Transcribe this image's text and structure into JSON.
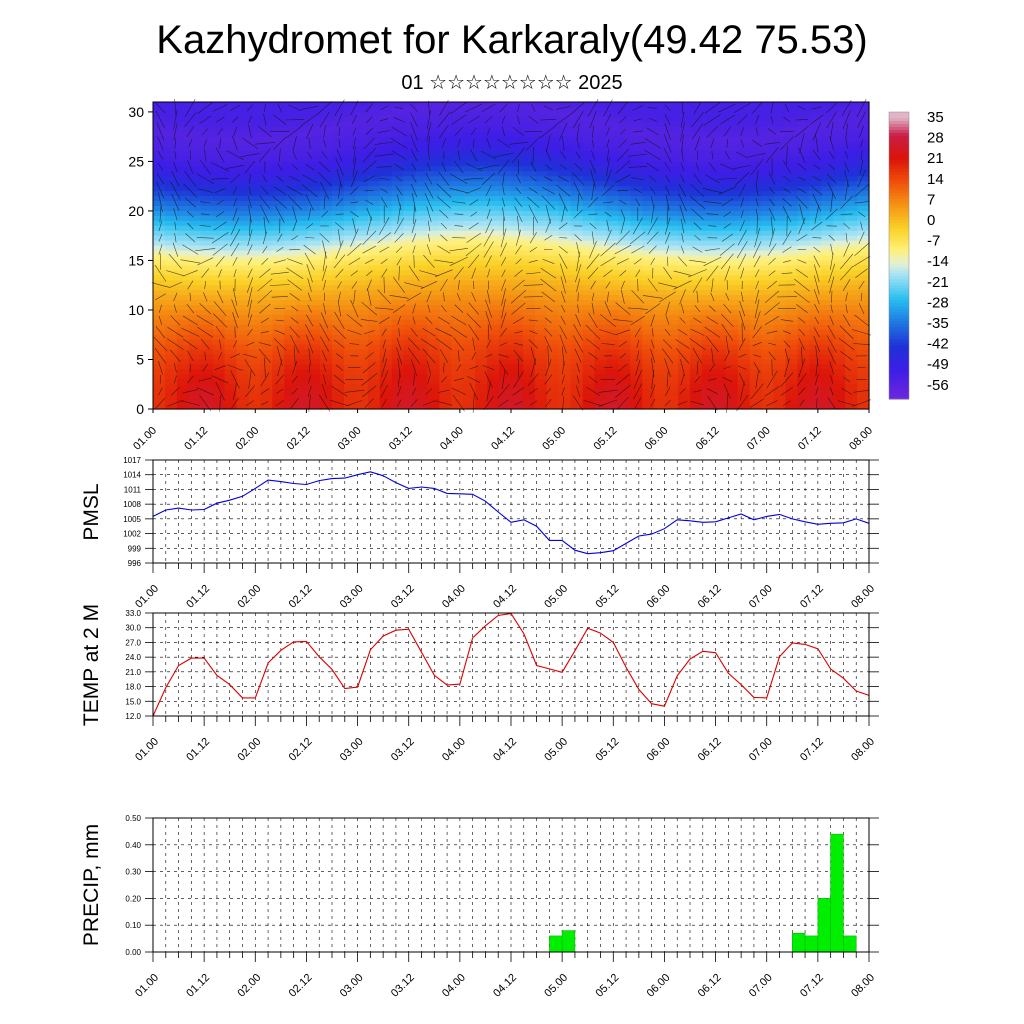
{
  "title": "Kazhydromet for Karkaraly(49.42 75.53)",
  "subtitle": "01 ☆☆☆☆☆☆☆☆ 2025",
  "time_ticks": [
    "01.00",
    "01.12",
    "02.00",
    "02.12",
    "03.00",
    "03.12",
    "04.00",
    "04.12",
    "05.00",
    "05.12",
    "06.00",
    "06.12",
    "07.00",
    "07.12",
    "08.00"
  ],
  "colors": {
    "pmsl_line": "#0000dd",
    "temp_line": "#dd0000",
    "precip_bar": "#00ee00"
  },
  "chart_data": [
    {
      "type": "heatmap",
      "title": "",
      "xlabel": "",
      "ylabel": "",
      "ylim": [
        0,
        31
      ],
      "yticks": [
        0,
        5,
        10,
        15,
        20,
        25,
        30
      ],
      "xticks": [
        "01.00",
        "01.12",
        "02.00",
        "02.12",
        "03.00",
        "03.12",
        "04.00",
        "04.12",
        "05.00",
        "05.12",
        "06.00",
        "06.12",
        "07.00",
        "07.12",
        "08.00"
      ],
      "colorbar": {
        "labels": [
          "35",
          "28",
          "21",
          "14",
          "7",
          "0",
          "-7",
          "-14",
          "-21",
          "-28",
          "-35",
          "-42",
          "-49",
          "-56"
        ],
        "min": -60,
        "max": 38
      },
      "overlay": "wind vectors",
      "temperature_profile": {
        "levels": [
          0,
          2,
          4,
          6,
          8,
          10,
          12,
          14,
          16,
          17,
          19,
          21,
          23,
          25,
          27,
          29,
          31
        ],
        "values": [
          22,
          21,
          19,
          16,
          12,
          8,
          3,
          -3,
          -10,
          -16,
          -24,
          -33,
          -41,
          -49,
          -53,
          -55,
          -52
        ]
      }
    },
    {
      "type": "line",
      "ylabel": "PMSL",
      "ylim": [
        996,
        1017
      ],
      "yticks": [
        996,
        999,
        1002,
        1005,
        1008,
        1011,
        1014,
        1017
      ],
      "x": [
        0,
        3,
        6,
        9,
        12,
        15,
        18,
        21,
        24,
        27,
        30,
        33,
        36,
        39,
        42,
        45,
        48,
        51,
        54,
        57,
        60,
        63,
        66,
        69,
        72,
        75,
        78,
        81,
        84,
        87,
        90,
        93,
        96,
        99,
        102,
        105,
        108,
        111,
        114,
        117,
        120,
        123,
        126,
        129,
        132,
        135,
        138,
        141,
        144,
        147,
        150,
        153,
        156,
        159,
        162,
        165,
        168
      ],
      "xlabel_ticks": [
        "01.00",
        "01.12",
        "02.00",
        "02.12",
        "03.00",
        "03.12",
        "04.00",
        "04.12",
        "05.00",
        "05.12",
        "06.00",
        "06.12",
        "07.00",
        "07.12",
        "08.00"
      ],
      "series": [
        {
          "values": [
            1005.5,
            1006.8,
            1007.2,
            1006.8,
            1006.9,
            1008.2,
            1008.8,
            1009.6,
            1011.2,
            1012.9,
            1012.6,
            1012.2,
            1012.0,
            1012.8,
            1013.2,
            1013.3,
            1014.0,
            1014.6,
            1013.8,
            1012.4,
            1011.2,
            1011.5,
            1011.2,
            1010.2,
            1010.1,
            1010.0,
            1008.6,
            1006.4,
            1004.3,
            1004.8,
            1003.5,
            1000.6,
            1000.6,
            998.6,
            997.9,
            998.1,
            998.5,
            1000.0,
            1001.5,
            1001.9,
            1003.0,
            1004.8,
            1004.6,
            1004.3,
            1004.4,
            1005.2,
            1006.0,
            1004.8,
            1005.5,
            1005.9,
            1005.0,
            1004.4,
            1003.9,
            1004.1,
            1004.2,
            1005.0,
            1004.1
          ]
        }
      ]
    },
    {
      "type": "line",
      "ylabel": "TEMP at 2 M",
      "ylim": [
        12.0,
        33.0
      ],
      "yticks": [
        "12.0",
        "15.0",
        "18.0",
        "21.0",
        "24.0",
        "27.0",
        "30.0",
        "33.0"
      ],
      "x": [
        0,
        3,
        6,
        9,
        12,
        15,
        18,
        21,
        24,
        27,
        30,
        33,
        36,
        39,
        42,
        45,
        48,
        51,
        54,
        57,
        60,
        63,
        66,
        69,
        72,
        75,
        78,
        81,
        84,
        87,
        90,
        93,
        96,
        99,
        102,
        105,
        108,
        111,
        114,
        117,
        120,
        123,
        126,
        129,
        132,
        135,
        138,
        141,
        144,
        147,
        150,
        153,
        156,
        159,
        162,
        165,
        168
      ],
      "xlabel_ticks": [
        "01.00",
        "01.12",
        "02.00",
        "02.12",
        "03.00",
        "03.12",
        "04.00",
        "04.12",
        "05.00",
        "05.12",
        "06.00",
        "06.12",
        "07.00",
        "07.12",
        "08.00"
      ],
      "series": [
        {
          "values": [
            12.0,
            17.8,
            22.3,
            23.8,
            23.8,
            20.3,
            18.4,
            15.7,
            15.7,
            22.8,
            25.4,
            27.1,
            27.2,
            24.1,
            21.5,
            17.6,
            17.9,
            25.5,
            28.3,
            29.5,
            29.7,
            25.0,
            20.3,
            18.3,
            18.5,
            27.9,
            30.4,
            32.5,
            32.9,
            28.8,
            22.3,
            21.6,
            20.9,
            25.3,
            29.9,
            28.9,
            27.0,
            21.9,
            17.4,
            14.5,
            14.0,
            20.2,
            23.6,
            25.2,
            24.9,
            20.7,
            18.4,
            15.8,
            15.7,
            24.1,
            26.9,
            26.6,
            25.7,
            21.6,
            19.7,
            17.1,
            16.2
          ]
        }
      ]
    },
    {
      "type": "bar",
      "ylabel": "PRECIP, mm",
      "ylim": [
        0.0,
        0.5
      ],
      "yticks": [
        "0.00",
        "0.10",
        "0.20",
        "0.30",
        "0.40",
        "0.50"
      ],
      "xlabel_ticks": [
        "01.00",
        "01.12",
        "02.00",
        "02.12",
        "03.00",
        "03.12",
        "04.00",
        "04.12",
        "05.00",
        "05.12",
        "06.00",
        "06.12",
        "07.00",
        "07.12",
        "08.00"
      ],
      "bars": [
        {
          "x_start": 93,
          "x_end": 96,
          "value": 0.06
        },
        {
          "x_start": 96,
          "x_end": 99,
          "value": 0.08
        },
        {
          "x_start": 150,
          "x_end": 153,
          "value": 0.07
        },
        {
          "x_start": 153,
          "x_end": 156,
          "value": 0.06
        },
        {
          "x_start": 156,
          "x_end": 159,
          "value": 0.2
        },
        {
          "x_start": 159,
          "x_end": 162,
          "value": 0.44
        },
        {
          "x_start": 162,
          "x_end": 165,
          "value": 0.06
        }
      ]
    }
  ]
}
